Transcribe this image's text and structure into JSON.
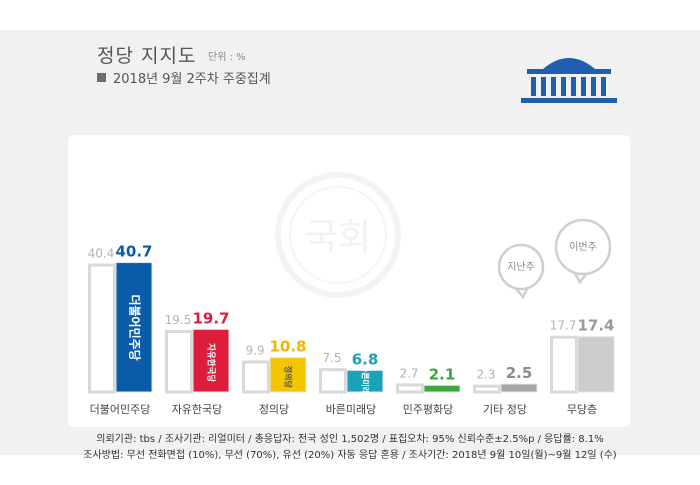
{
  "header": {
    "title": "정당 지지도",
    "unit": "단위 : %",
    "subtitle": "2018년 9월 2주차 주중집계"
  },
  "chart_data": {
    "type": "bar",
    "categories": [
      "더불어민주당",
      "자유한국당",
      "정의당",
      "바른미래당",
      "민주평화당",
      "기타 정당",
      "무당층"
    ],
    "series": [
      {
        "name": "",
        "values": [
          40.4,
          19.5,
          9.9,
          7.5,
          2.7,
          2.3,
          17.7
        ]
      },
      {
        "name": "",
        "values": [
          40.7,
          19.7,
          10.8,
          6.8,
          2.1,
          2.5,
          17.4
        ]
      }
    ],
    "value_labels_prev": [
      "40.4",
      "19.5",
      "9.9",
      "7.5",
      "2.7",
      "2.3",
      "17.7"
    ],
    "value_labels_curr": [
      "40.7",
      "19.7",
      "10.8",
      "6.8",
      "2.1",
      "2.5",
      "17.4"
    ],
    "bar_colors": [
      "#0a5ca8",
      "#dc1e3c",
      "#f4c600",
      "#1aa3b8",
      "#3aa83a",
      "#a6a6a6",
      "#cccccc"
    ],
    "label_colors": [
      "#0a5ca8",
      "#dc1e3c",
      "#f0b400",
      "#1aa3b8",
      "#3aa83a",
      "#8c8c8c",
      "#999999"
    ],
    "party_marks": [
      "더불어민주당",
      "자유한국당",
      "정의당",
      "바른미래당",
      "",
      "",
      ""
    ],
    "bubbles": [
      "지난주",
      "이번주"
    ],
    "watermark": "국회",
    "ylim": [
      0,
      45
    ],
    "grid": false,
    "legend": "none"
  },
  "footer": {
    "line1": "의뢰기관: tbs / 조사기관: 리얼미터 / 총응답자: 전국 성인 1,502명 / 표집오차: 95% 신뢰수준±2.5%p / 응답률: 8.1%",
    "line2": "조사방법: 무선 전화면접 (10%), 무선 (70%), 유선 (20%) 자동 응답 혼용 / 조사기간: 2018년 9월 10일(월)~9월 12일 (수)"
  }
}
